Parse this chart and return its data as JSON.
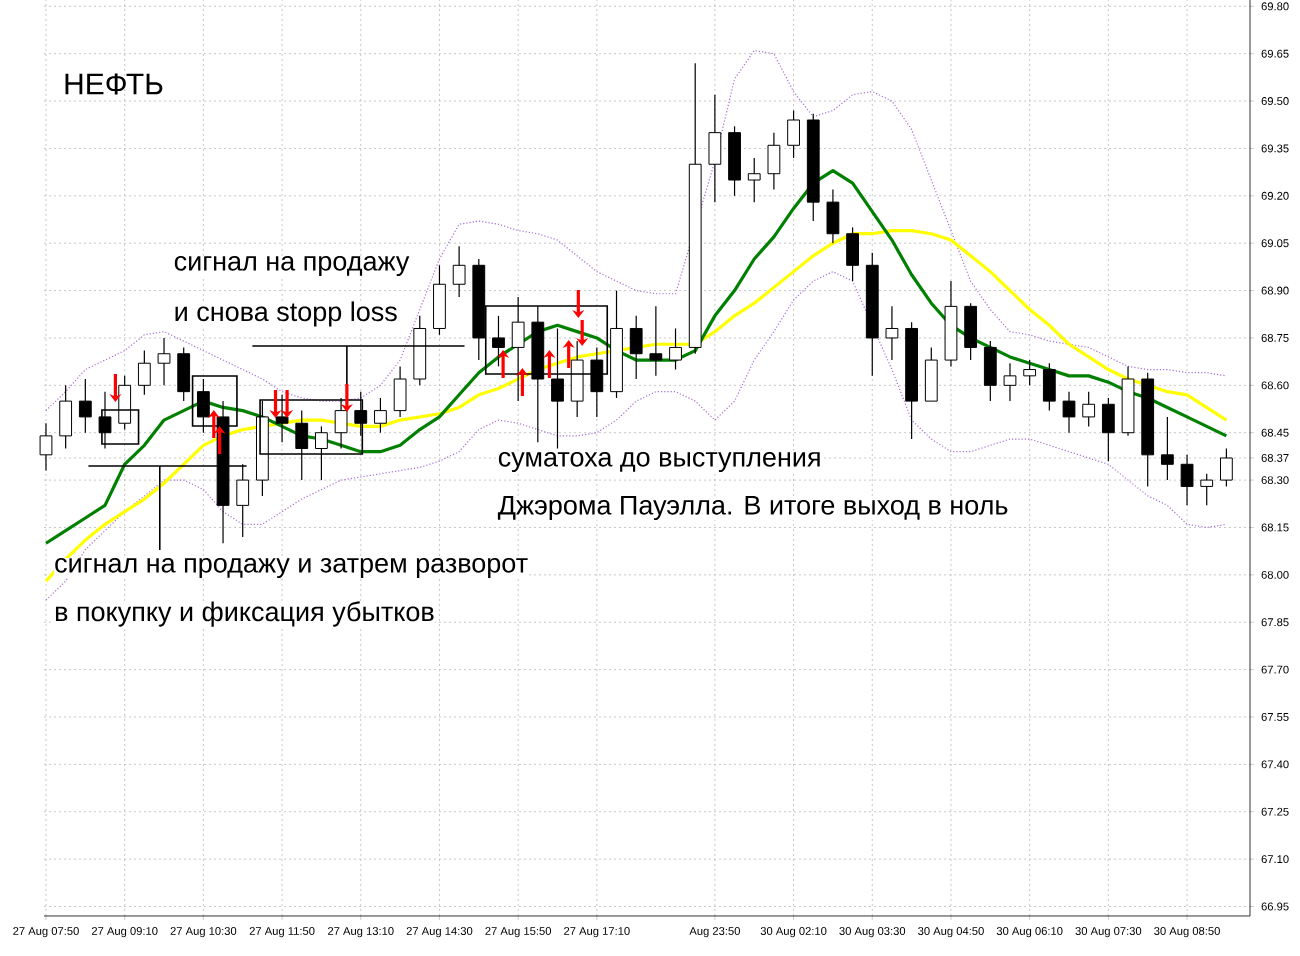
{
  "chart_data": {
    "type": "candlestick",
    "title": "НЕФТЬ",
    "categories": [
      "27 Aug 07:50",
      null,
      null,
      null,
      "27 Aug 09:10",
      null,
      null,
      null,
      "27 Aug 10:30",
      null,
      null,
      null,
      "27 Aug 11:50",
      null,
      null,
      null,
      "27 Aug 13:10",
      null,
      null,
      null,
      "27 Aug 14:30",
      null,
      null,
      null,
      "27 Aug 15:50",
      null,
      null,
      null,
      "27 Aug 17:10",
      null,
      null,
      null,
      null,
      null,
      "Aug 23:50",
      null,
      null,
      null,
      "30 Aug 02:10",
      null,
      null,
      null,
      "30 Aug 03:30",
      null,
      null,
      null,
      "30 Aug 04:50",
      null,
      null,
      null,
      "30 Aug 06:10",
      null,
      null,
      null,
      "30 Aug 07:30",
      null,
      null,
      null,
      "30 Aug 08:50",
      null,
      null
    ],
    "ohlc": [
      [
        68.38,
        68.48,
        68.33,
        68.44
      ],
      [
        68.44,
        68.6,
        68.4,
        68.55
      ],
      [
        68.55,
        68.62,
        68.45,
        68.5
      ],
      [
        68.5,
        68.58,
        68.4,
        68.45
      ],
      [
        68.48,
        68.63,
        68.46,
        68.6
      ],
      [
        68.6,
        68.71,
        68.57,
        68.67
      ],
      [
        68.67,
        68.75,
        68.6,
        68.7
      ],
      [
        68.7,
        68.72,
        68.55,
        68.58
      ],
      [
        68.58,
        68.62,
        68.45,
        68.5
      ],
      [
        68.5,
        68.55,
        68.1,
        68.22
      ],
      [
        68.22,
        68.35,
        68.12,
        68.3
      ],
      [
        68.3,
        68.55,
        68.25,
        68.5
      ],
      [
        68.5,
        68.57,
        68.42,
        68.48
      ],
      [
        68.48,
        68.52,
        68.3,
        68.4
      ],
      [
        68.4,
        68.47,
        68.3,
        68.45
      ],
      [
        68.45,
        68.56,
        68.4,
        68.52
      ],
      [
        68.52,
        68.58,
        68.44,
        68.48
      ],
      [
        68.48,
        68.56,
        68.45,
        68.52
      ],
      [
        68.52,
        68.66,
        68.5,
        68.62
      ],
      [
        68.62,
        68.82,
        68.6,
        68.78
      ],
      [
        68.78,
        68.98,
        68.76,
        68.92
      ],
      [
        68.92,
        69.04,
        68.88,
        68.98
      ],
      [
        68.98,
        69.0,
        68.68,
        68.75
      ],
      [
        68.75,
        68.82,
        68.66,
        68.72
      ],
      [
        68.72,
        68.88,
        68.55,
        68.8
      ],
      [
        68.8,
        68.85,
        68.42,
        68.62
      ],
      [
        68.62,
        68.78,
        68.4,
        68.55
      ],
      [
        68.55,
        68.74,
        68.5,
        68.68
      ],
      [
        68.68,
        68.72,
        68.5,
        68.58
      ],
      [
        68.58,
        68.9,
        68.56,
        68.78
      ],
      [
        68.78,
        68.82,
        68.62,
        68.7
      ],
      [
        68.7,
        68.85,
        68.63,
        68.68
      ],
      [
        68.68,
        68.78,
        68.65,
        68.72
      ],
      [
        68.72,
        69.62,
        68.7,
        69.3
      ],
      [
        69.3,
        69.52,
        69.18,
        69.4
      ],
      [
        69.4,
        69.42,
        69.2,
        69.25
      ],
      [
        69.25,
        69.32,
        69.18,
        69.27
      ],
      [
        69.27,
        69.4,
        69.22,
        69.36
      ],
      [
        69.36,
        69.47,
        69.32,
        69.44
      ],
      [
        69.44,
        69.46,
        69.12,
        69.18
      ],
      [
        69.18,
        69.22,
        69.05,
        69.08
      ],
      [
        69.08,
        69.1,
        68.93,
        68.98
      ],
      [
        68.98,
        69.02,
        68.63,
        68.75
      ],
      [
        68.75,
        68.85,
        68.68,
        68.78
      ],
      [
        68.78,
        68.8,
        68.43,
        68.55
      ],
      [
        68.55,
        68.72,
        68.55,
        68.68
      ],
      [
        68.68,
        68.93,
        68.66,
        68.85
      ],
      [
        68.85,
        68.86,
        68.68,
        68.72
      ],
      [
        68.72,
        68.74,
        68.55,
        68.6
      ],
      [
        68.6,
        68.67,
        68.55,
        68.63
      ],
      [
        68.63,
        68.68,
        68.6,
        68.65
      ],
      [
        68.65,
        68.67,
        68.52,
        68.55
      ],
      [
        68.55,
        68.58,
        68.45,
        68.5
      ],
      [
        68.5,
        68.58,
        68.47,
        68.54
      ],
      [
        68.54,
        68.56,
        68.36,
        68.45
      ],
      [
        68.45,
        68.66,
        68.44,
        68.62
      ],
      [
        68.62,
        68.64,
        68.28,
        68.38
      ],
      [
        68.38,
        68.5,
        68.3,
        68.35
      ],
      [
        68.35,
        68.38,
        68.22,
        68.28
      ],
      [
        68.28,
        68.32,
        68.22,
        68.3
      ],
      [
        68.3,
        68.4,
        68.28,
        68.37
      ]
    ],
    "series": [
      {
        "type": "line",
        "color": "#a66bd6",
        "line_style": "dotted",
        "values": [
          68.52,
          68.58,
          68.65,
          68.68,
          68.71,
          68.76,
          68.77,
          68.74,
          68.71,
          68.68,
          68.65,
          68.62,
          68.58,
          68.56,
          68.55,
          68.55,
          68.56,
          68.6,
          68.68,
          68.84,
          69.0,
          69.11,
          69.12,
          69.11,
          69.09,
          69.08,
          69.06,
          69.01,
          68.96,
          68.93,
          68.9,
          68.89,
          68.89,
          null,
          69.31,
          69.57,
          69.66,
          69.65,
          69.53,
          69.45,
          69.47,
          69.52,
          69.53,
          69.5,
          69.41,
          69.25,
          69.09,
          68.93,
          68.84,
          68.77,
          68.76,
          68.74,
          68.73,
          68.72,
          68.69,
          68.66,
          68.65,
          68.65,
          68.64,
          68.64,
          68.63
        ]
      },
      {
        "type": "line",
        "color": "#a66bd6",
        "line_style": "dotted",
        "values": [
          67.92,
          67.98,
          68.08,
          68.14,
          68.2,
          68.25,
          68.3,
          68.3,
          68.27,
          68.2,
          68.16,
          68.16,
          68.2,
          68.24,
          68.27,
          68.3,
          68.31,
          68.32,
          68.33,
          68.34,
          68.36,
          68.39,
          68.46,
          68.49,
          68.48,
          68.46,
          68.44,
          68.44,
          68.45,
          68.49,
          68.55,
          68.58,
          68.58,
          68.55,
          68.49,
          68.55,
          68.68,
          68.77,
          68.87,
          68.93,
          68.96,
          68.93,
          null,
          68.65,
          68.49,
          68.43,
          68.39,
          68.39,
          68.41,
          68.43,
          68.43,
          68.41,
          68.39,
          68.37,
          68.35,
          68.3,
          68.25,
          68.22,
          68.16,
          68.15,
          68.16
        ]
      },
      {
        "type": "line",
        "color": "#ffff00",
        "line_style": "solid",
        "values": [
          67.98,
          68.05,
          68.11,
          68.16,
          68.2,
          68.24,
          68.29,
          68.35,
          68.41,
          68.44,
          68.46,
          68.47,
          68.48,
          68.49,
          68.49,
          68.48,
          68.47,
          68.47,
          68.49,
          68.5,
          68.51,
          68.53,
          68.57,
          68.59,
          68.62,
          68.65,
          68.67,
          68.69,
          68.7,
          68.71,
          68.72,
          68.73,
          68.73,
          68.73,
          68.77,
          68.82,
          68.86,
          68.91,
          68.96,
          69.01,
          69.05,
          69.08,
          69.08,
          69.09,
          69.09,
          69.08,
          69.06,
          69.01,
          68.96,
          68.9,
          68.84,
          68.79,
          68.73,
          68.69,
          68.65,
          68.62,
          68.6,
          68.58,
          68.57,
          68.53,
          68.49
        ]
      },
      {
        "type": "line",
        "color": "#008000",
        "line_style": "solid",
        "values": [
          68.1,
          68.14,
          68.18,
          68.22,
          68.35,
          68.41,
          68.49,
          68.52,
          68.55,
          68.53,
          68.52,
          68.5,
          68.47,
          68.44,
          68.43,
          68.41,
          68.39,
          68.39,
          68.41,
          68.46,
          68.5,
          68.57,
          68.64,
          68.69,
          68.73,
          68.77,
          68.79,
          68.77,
          68.75,
          68.71,
          68.68,
          68.68,
          68.68,
          68.71,
          68.82,
          68.9,
          69.0,
          69.07,
          69.16,
          69.24,
          69.28,
          69.24,
          69.15,
          69.06,
          68.95,
          68.86,
          68.79,
          68.75,
          68.72,
          68.69,
          68.67,
          68.65,
          68.63,
          68.63,
          68.61,
          68.58,
          68.56,
          68.53,
          68.5,
          68.47,
          68.44
        ]
      }
    ],
    "ylim": [
      66.92,
      69.82
    ],
    "yticks": [
      {
        "value": 66.95,
        "label": "66.95"
      },
      {
        "value": 67.1,
        "label": "67.10"
      },
      {
        "value": 67.25,
        "label": "67.25"
      },
      {
        "value": 67.4,
        "label": "67.40"
      },
      {
        "value": 67.55,
        "label": "67.55"
      },
      {
        "value": 67.7,
        "label": "67.70"
      },
      {
        "value": 67.85,
        "label": "67.85"
      },
      {
        "value": 68.0,
        "label": "68.00"
      },
      {
        "value": 68.15,
        "label": "68.15"
      },
      {
        "value": 68.3,
        "label": "68.30"
      },
      {
        "value": 68.37,
        "label": "68.37"
      },
      {
        "value": 68.45,
        "label": "68.45"
      },
      {
        "value": 68.6,
        "label": "68.60"
      },
      {
        "value": 68.75,
        "label": "68.75"
      },
      {
        "value": 68.9,
        "label": "68.90"
      },
      {
        "value": 69.05,
        "label": "69.05"
      },
      {
        "value": 69.2,
        "label": "69.20"
      },
      {
        "value": 69.35,
        "label": "69.35"
      },
      {
        "value": 69.5,
        "label": "69.50"
      },
      {
        "value": 69.65,
        "label": "69.65"
      },
      {
        "value": 69.8,
        "label": "69.80"
      }
    ],
    "annotations": [
      "сигнал на продажу",
      "и снова stopp loss",
      "суматоха до выступления",
      "Джэрома Пауэлла. В итоге выход в ноль",
      "сигнал на продажу и затрем разворот",
      "в покупку и фиксация убытков"
    ],
    "grid": true,
    "marker": "none"
  }
}
